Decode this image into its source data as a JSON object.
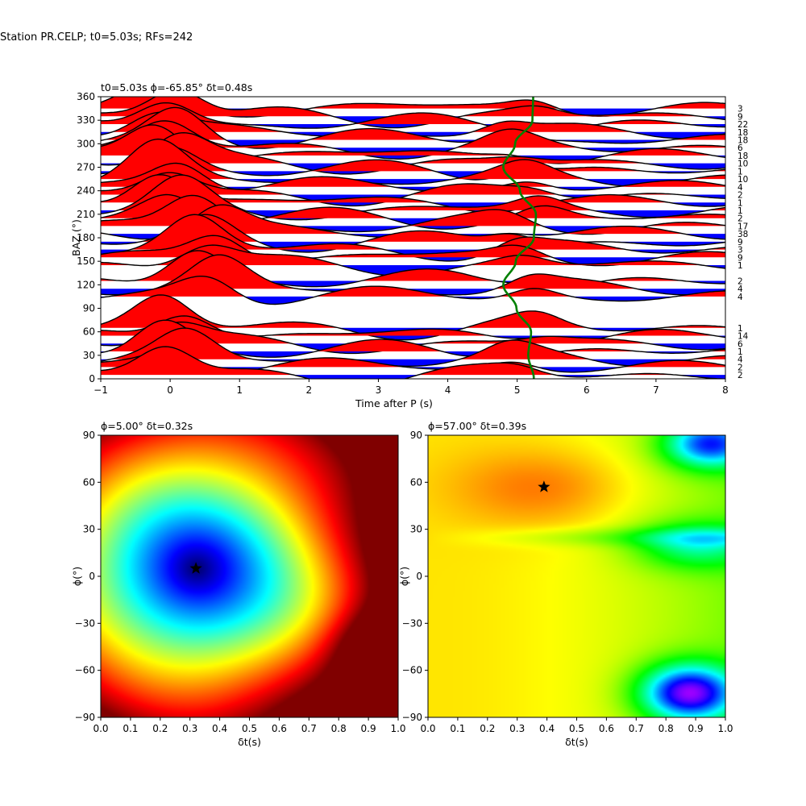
{
  "suptitle": "Station PR.CELP; t0=5.03s; RFs=242",
  "chart_data": [
    {
      "type": "wiggle",
      "title": "t0=5.03s ϕ=-65.85° δt=0.48s",
      "xlabel": "Time after P (s)",
      "ylabel": "BAZ (°)",
      "xlim": [
        -1,
        8
      ],
      "ylim": [
        0,
        360
      ],
      "xticks": [
        "−1",
        "0",
        "1",
        "2",
        "3",
        "4",
        "5",
        "6",
        "7",
        "8"
      ],
      "yticks": [
        "0",
        "30",
        "60",
        "90",
        "120",
        "150",
        "180",
        "210",
        "240",
        "270",
        "300",
        "330",
        "360"
      ],
      "bin_counts": [
        "3",
        "9",
        "22",
        "18",
        "18",
        "6",
        "18",
        "10",
        "1",
        "10",
        "4",
        "2",
        "1",
        "1",
        "2",
        "17",
        "38",
        "9",
        "3",
        "9",
        "1",
        "2",
        "4",
        "4",
        "1",
        "14",
        "6",
        "1",
        "4",
        "2",
        "2"
      ],
      "bin_baz": [
        345,
        335,
        325,
        315,
        305,
        295,
        285,
        275,
        265,
        255,
        245,
        235,
        225,
        215,
        205,
        195,
        185,
        175,
        165,
        155,
        145,
        125,
        115,
        105,
        65,
        55,
        45,
        35,
        25,
        15,
        5
      ],
      "green_curve": {
        "baz": [
          0,
          30,
          60,
          90,
          120,
          150,
          180,
          210,
          240,
          270,
          300,
          330,
          360
        ],
        "time": [
          5.24,
          5.16,
          5.2,
          4.99,
          4.8,
          4.98,
          5.24,
          5.27,
          5.04,
          4.8,
          4.97,
          5.22,
          5.23
        ],
        "color": "#008000"
      },
      "colors": {
        "positive": "#ff0000",
        "negative": "#0000ff",
        "trace": "#000000"
      }
    },
    {
      "type": "heatmap",
      "title": "ϕ=5.00° δt=0.32s",
      "xlabel": "δt(s)",
      "ylabel": "ϕ(°)",
      "xlim": [
        0,
        1
      ],
      "ylim": [
        -90,
        90
      ],
      "xticks": [
        "0.0",
        "0.1",
        "0.2",
        "0.3",
        "0.4",
        "0.5",
        "0.6",
        "0.7",
        "0.8",
        "0.9",
        "1.0"
      ],
      "yticks": [
        "−90",
        "−60",
        "−30",
        "0",
        "30",
        "60",
        "90"
      ],
      "marker": {
        "x": 0.32,
        "y": 5.0,
        "symbol": "star"
      },
      "colormap": "jet_r"
    },
    {
      "type": "heatmap",
      "title": "ϕ=57.00° δt=0.39s",
      "xlabel": "δt(s)",
      "ylabel": "ϕ(°)",
      "xlim": [
        0,
        1
      ],
      "ylim": [
        -90,
        90
      ],
      "xticks": [
        "0.0",
        "0.1",
        "0.2",
        "0.3",
        "0.4",
        "0.5",
        "0.6",
        "0.7",
        "0.8",
        "0.9",
        "1.0"
      ],
      "yticks": [
        "−90",
        "−60",
        "−30",
        "0",
        "30",
        "60",
        "90"
      ],
      "marker": {
        "x": 0.39,
        "y": 57.0,
        "symbol": "star"
      },
      "colormap": "jet_r"
    }
  ]
}
